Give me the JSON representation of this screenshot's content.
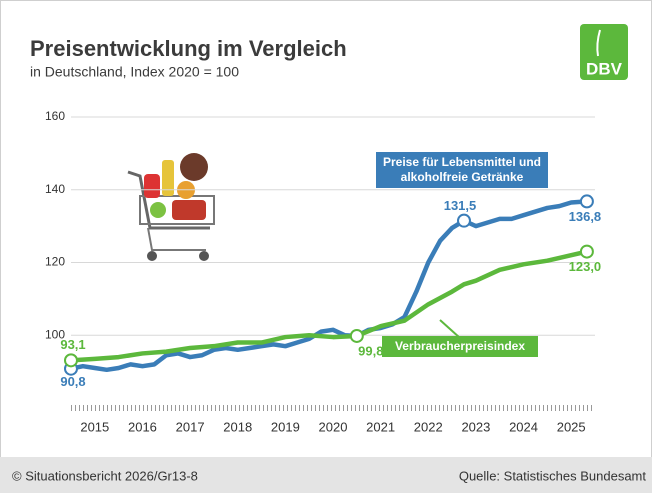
{
  "chart_data": {
    "type": "line",
    "title": "Preisentwicklung im Vergleich",
    "subtitle": "in Deutschland, Index 2020 = 100",
    "logo": "DBV",
    "credit": "© Situationsbericht 2026/Gr13-8",
    "source": "Quelle: Statistisches Bundesamt",
    "xlim": [
      2015,
      2026
    ],
    "xticks": [
      {
        "value": 2015.5,
        "label": "2015"
      },
      {
        "value": 2016.5,
        "label": "2016"
      },
      {
        "value": 2017.5,
        "label": "2017"
      },
      {
        "value": 2018.5,
        "label": "2018"
      },
      {
        "value": 2019.5,
        "label": "2019"
      },
      {
        "value": 2020.5,
        "label": "2020"
      },
      {
        "value": 2021.5,
        "label": "2021"
      },
      {
        "value": 2022.5,
        "label": "2022"
      },
      {
        "value": 2023.5,
        "label": "2023"
      },
      {
        "value": 2024.5,
        "label": "2024"
      },
      {
        "value": 2025.5,
        "label": "2025"
      }
    ],
    "ylim": [
      80,
      160
    ],
    "yticks": [
      100,
      120,
      140,
      160
    ],
    "grid": true,
    "series": [
      {
        "name": "Preise für Lebensmittel und alkoholfreie Getränke",
        "color": "#3a7db8",
        "x": [
          2015.0,
          2015.25,
          2015.5,
          2015.75,
          2016.0,
          2016.25,
          2016.5,
          2016.75,
          2017.0,
          2017.25,
          2017.5,
          2017.75,
          2018.0,
          2018.25,
          2018.5,
          2018.75,
          2019.0,
          2019.25,
          2019.5,
          2019.75,
          2020.0,
          2020.25,
          2020.5,
          2020.75,
          2021.0,
          2021.25,
          2021.5,
          2021.75,
          2022.0,
          2022.25,
          2022.5,
          2022.75,
          2023.0,
          2023.25,
          2023.5,
          2023.75,
          2024.0,
          2024.25,
          2024.5,
          2024.75,
          2025.0,
          2025.25,
          2025.5,
          2025.83
        ],
        "values": [
          90.8,
          91.5,
          91,
          90.5,
          91,
          92,
          91.5,
          92,
          94.5,
          95,
          94,
          94.5,
          96,
          96.5,
          96,
          96.5,
          97,
          97.5,
          97,
          98,
          99,
          101,
          101.5,
          100,
          99.8,
          101.5,
          102,
          103,
          105,
          112,
          120,
          126,
          129.5,
          131.5,
          130,
          131,
          132,
          132,
          133,
          134,
          135,
          135.5,
          136.5,
          136.8
        ],
        "value_labels": [
          "90,8",
          null,
          null,
          null,
          null,
          null,
          null,
          null,
          null,
          null,
          null,
          null,
          null,
          null,
          null,
          null,
          null,
          null,
          null,
          null,
          null,
          null,
          null,
          null,
          null,
          null,
          null,
          null,
          null,
          null,
          null,
          null,
          null,
          "131,5",
          null,
          null,
          null,
          null,
          null,
          null,
          null,
          null,
          null,
          "136,8"
        ]
      },
      {
        "name": "Verbraucherpreisindex",
        "color": "#5cb83c",
        "x": [
          2015.0,
          2015.5,
          2016.0,
          2016.5,
          2017.0,
          2017.5,
          2018.0,
          2018.5,
          2019.0,
          2019.5,
          2020.0,
          2020.5,
          2021.0,
          2021.5,
          2022.0,
          2022.5,
          2023.0,
          2023.25,
          2023.5,
          2024.0,
          2024.5,
          2025.0,
          2025.5,
          2025.83
        ],
        "values": [
          93.1,
          93.5,
          94,
          95,
          95.5,
          96.5,
          97,
          98,
          98,
          99.5,
          100,
          99.5,
          99.8,
          102.5,
          104,
          108.5,
          112,
          114,
          115,
          118,
          119.5,
          120.5,
          122,
          123.0
        ],
        "value_labels": [
          "93,1",
          null,
          null,
          null,
          null,
          null,
          null,
          null,
          null,
          null,
          null,
          null,
          "99,8",
          null,
          null,
          null,
          null,
          null,
          null,
          null,
          null,
          null,
          null,
          "123,0"
        ]
      }
    ]
  }
}
